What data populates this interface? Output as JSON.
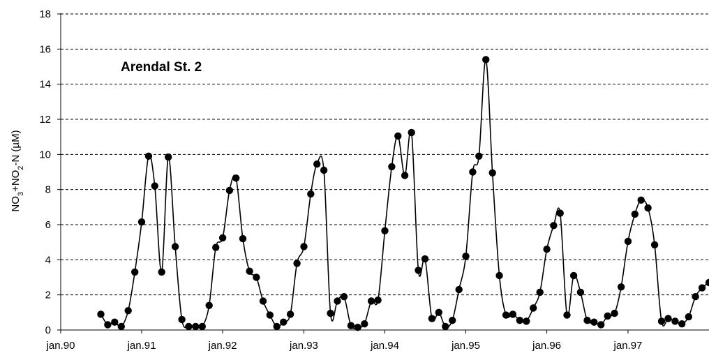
{
  "chart_data": {
    "type": "line",
    "title": "Arendal St. 2",
    "ylabel": "NO3+NO2-N (µM)",
    "ylabel_parts": {
      "a": "NO",
      "b": "3",
      "c": "+NO",
      "d": "2",
      "e": "-N (µM)"
    },
    "xlabel": "",
    "ylim": [
      0,
      18
    ],
    "yticks": [
      "0",
      "2",
      "4",
      "6",
      "8",
      "10",
      "12",
      "14",
      "16",
      "18"
    ],
    "xlim": [
      "1990-01-01",
      "1998-01-01"
    ],
    "xticks": [
      "jan.90",
      "jan.91",
      "jan.92",
      "jan.93",
      "jan.94",
      "jan.95",
      "jan.96",
      "jan.97"
    ],
    "grid": "horizontal dashed",
    "marker": "filled circle",
    "series": [
      {
        "color": "#000000",
        "x": [
          "1990-07-01",
          "1990-08-01",
          "1990-09-01",
          "1990-10-01",
          "1990-11-01",
          "1990-12-01",
          "1991-01-01",
          "1991-02-01",
          "1991-03-01",
          "1991-04-01",
          "1991-05-01",
          "1991-06-01",
          "1991-07-01",
          "1991-08-01",
          "1991-09-01",
          "1991-10-01",
          "1991-11-01",
          "1991-12-01",
          "1992-01-01",
          "1992-02-01",
          "1992-03-01",
          "1992-04-01",
          "1992-05-01",
          "1992-06-01",
          "1992-07-01",
          "1992-08-01",
          "1992-09-01",
          "1992-10-01",
          "1992-11-01",
          "1992-12-01",
          "1993-01-01",
          "1993-02-01",
          "1993-03-01",
          "1993-04-01",
          "1993-05-01",
          "1993-06-01",
          "1993-07-01",
          "1993-08-01",
          "1993-09-01",
          "1993-10-01",
          "1993-11-01",
          "1993-12-01",
          "1994-01-01",
          "1994-02-01",
          "1994-03-01",
          "1994-04-01",
          "1994-05-01",
          "1994-06-01",
          "1994-07-01",
          "1994-08-01",
          "1994-09-01",
          "1994-10-01",
          "1994-11-01",
          "1994-12-01",
          "1995-01-01",
          "1995-02-01",
          "1995-03-01",
          "1995-04-01",
          "1995-05-01",
          "1995-06-01",
          "1995-07-01",
          "1995-08-01",
          "1995-09-01",
          "1995-10-01",
          "1995-11-01",
          "1995-12-01",
          "1996-01-01",
          "1996-02-01",
          "1996-03-01",
          "1996-04-01",
          "1996-05-01",
          "1996-06-01",
          "1996-07-01",
          "1996-08-01",
          "1996-09-01",
          "1996-10-01",
          "1996-11-01",
          "1996-12-01",
          "1997-01-01",
          "1997-02-01",
          "1997-03-01",
          "1997-04-01",
          "1997-05-01",
          "1997-06-01",
          "1997-07-01",
          "1997-08-01",
          "1997-09-01",
          "1997-10-01",
          "1997-11-01",
          "1997-12-01",
          "1998-01-01"
        ],
        "y": [
          0.9,
          0.3,
          0.45,
          0.2,
          1.1,
          3.3,
          6.15,
          9.9,
          8.2,
          3.3,
          9.85,
          4.75,
          0.6,
          0.2,
          0.2,
          0.2,
          1.4,
          4.7,
          5.25,
          7.95,
          8.65,
          5.2,
          3.35,
          3.0,
          1.65,
          0.85,
          0.2,
          0.45,
          0.9,
          3.8,
          4.75,
          7.75,
          9.45,
          9.1,
          0.95,
          1.65,
          1.9,
          0.25,
          0.15,
          0.35,
          1.65,
          1.7,
          5.65,
          9.3,
          11.05,
          8.8,
          11.25,
          3.4,
          4.05,
          0.65,
          1.0,
          0.2,
          0.55,
          2.3,
          4.2,
          9.0,
          9.9,
          15.4,
          8.95,
          3.1,
          0.85,
          0.9,
          0.55,
          0.5,
          1.25,
          2.15,
          4.6,
          5.95,
          6.65,
          0.85,
          3.1,
          2.15,
          0.55,
          0.45,
          0.3,
          0.8,
          0.95,
          2.45,
          5.05,
          6.6,
          7.4,
          6.95,
          4.85,
          0.5,
          0.65,
          0.5,
          0.35,
          0.75,
          1.9,
          2.4,
          2.7
        ]
      }
    ]
  }
}
